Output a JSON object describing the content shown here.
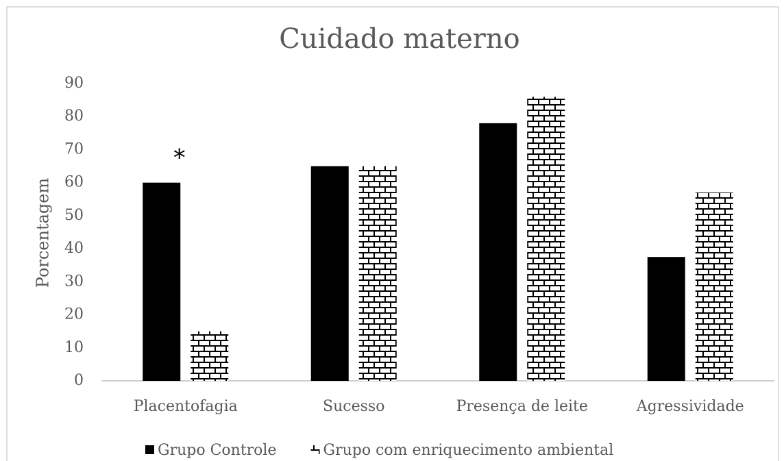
{
  "chart_data": {
    "type": "bar",
    "title": "Cuidado materno",
    "y_label": "Porcentagem",
    "categories": [
      "Placentofagia",
      "Sucesso",
      "Presença de leite",
      "Agressividade"
    ],
    "series": [
      {
        "name": "Grupo Controle",
        "color": "#000000",
        "pattern": "solid",
        "values": [
          60,
          65,
          78,
          37.5
        ]
      },
      {
        "name": "Grupo com enriquecimento ambiental",
        "color": "#000000",
        "pattern": "bricks",
        "values": [
          15,
          65,
          86,
          57
        ]
      }
    ],
    "ylim": [
      0,
      90
    ],
    "yticks": [
      0,
      10,
      20,
      30,
      40,
      50,
      60,
      70,
      80,
      90
    ],
    "grid": false,
    "legend": "bottom",
    "annotations": [
      {
        "text": "*",
        "category": "Placentofagia"
      }
    ]
  }
}
